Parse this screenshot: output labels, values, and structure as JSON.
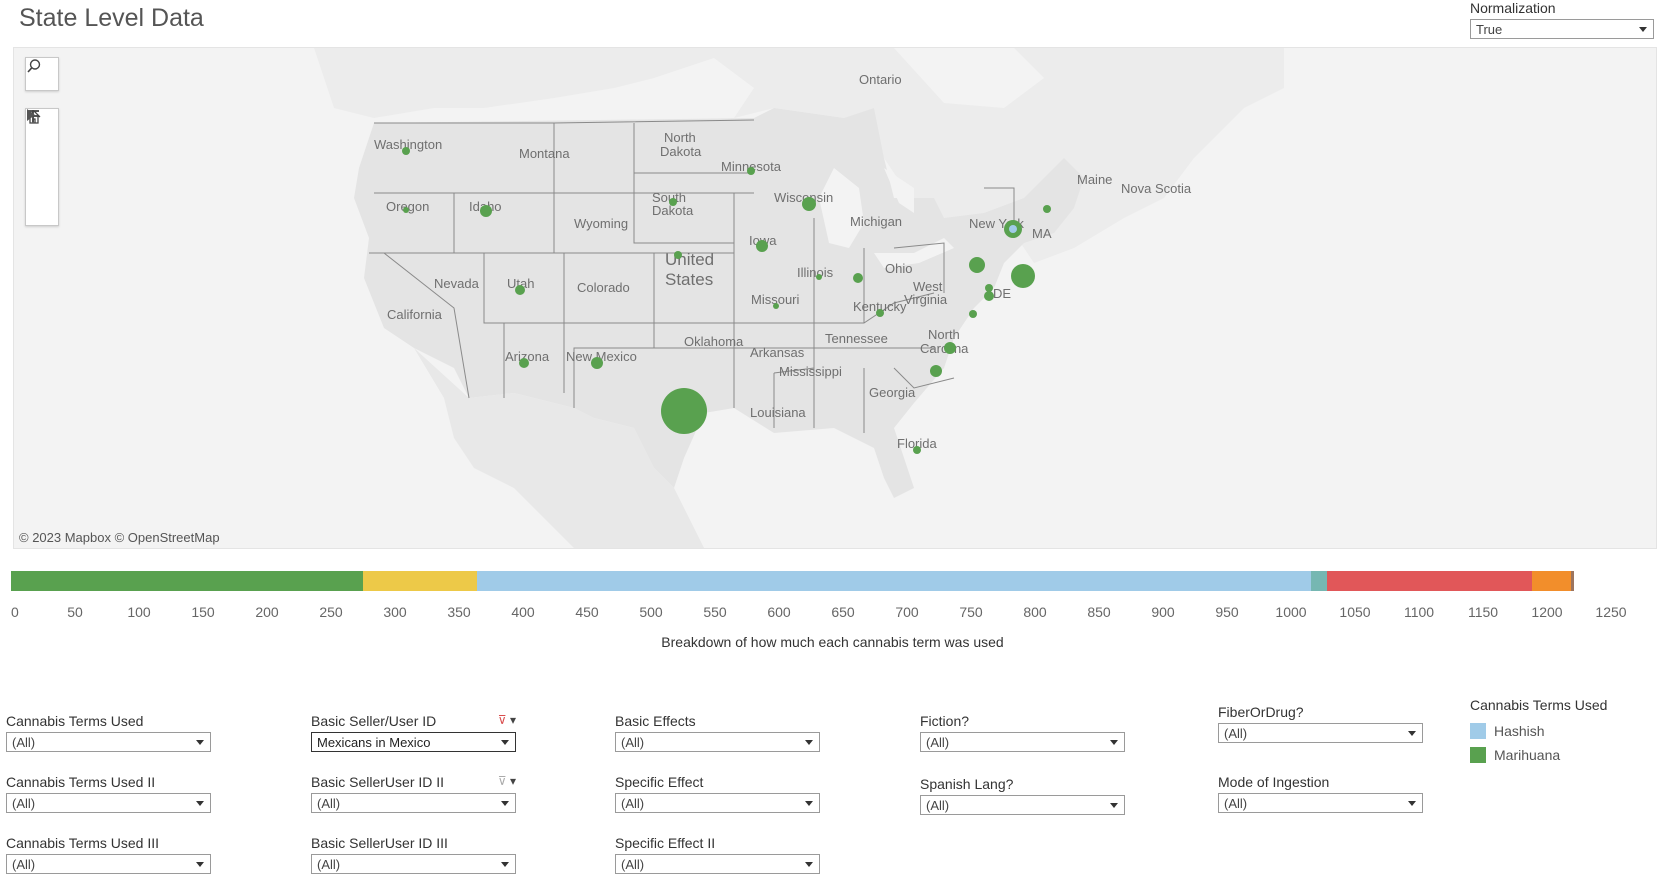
{
  "title": "State Level Data",
  "normalization": {
    "label": "Normalization",
    "value": "True"
  },
  "map": {
    "attribution": "© 2023 Mapbox  © OpenStreetMap",
    "place_labels": [
      {
        "text": "Ontario"
      },
      {
        "text": "Washington"
      },
      {
        "text": "Montana"
      },
      {
        "text": "North"
      },
      {
        "text": "Dakota"
      },
      {
        "text": "Minnesota"
      },
      {
        "text": "Maine"
      },
      {
        "text": "Nova Scotia"
      },
      {
        "text": "Oregon"
      },
      {
        "text": "Idaho"
      },
      {
        "text": "Wyoming"
      },
      {
        "text": "South"
      },
      {
        "text": "Dakota"
      },
      {
        "text": "Wisconsin"
      },
      {
        "text": "Michigan"
      },
      {
        "text": "New York"
      },
      {
        "text": "MA"
      },
      {
        "text": "Iowa"
      },
      {
        "text": "United"
      },
      {
        "text": "States"
      },
      {
        "text": "Nevada"
      },
      {
        "text": "Utah"
      },
      {
        "text": "Colorado"
      },
      {
        "text": "Illinois"
      },
      {
        "text": "Ohio"
      },
      {
        "text": "West"
      },
      {
        "text": "Virginia"
      },
      {
        "text": "DE"
      },
      {
        "text": "California"
      },
      {
        "text": "Missouri"
      },
      {
        "text": "Kentucky"
      },
      {
        "text": "Tennessee"
      },
      {
        "text": "Oklahoma"
      },
      {
        "text": "North"
      },
      {
        "text": "Carolina"
      },
      {
        "text": "Arizona"
      },
      {
        "text": "New Mexico"
      },
      {
        "text": "Arkansas"
      },
      {
        "text": "Mississippi"
      },
      {
        "text": "Georgia"
      },
      {
        "text": "Louisiana"
      },
      {
        "text": "Florida"
      }
    ],
    "marker_colors": {
      "marihuana": "#59a14f",
      "hashish": "#a0cbe8"
    }
  },
  "map_tools": {
    "search": "search-icon",
    "zoom_in": "plus-icon",
    "zoom_out": "minus-icon",
    "home": "home-icon",
    "pan": "play-icon"
  },
  "breakdown": {
    "caption": "Breakdown of how much each cannabis term was used",
    "segments": [
      {
        "from": 0,
        "to": 275,
        "color": "#59a14f"
      },
      {
        "from": 275,
        "to": 364,
        "color": "#edc948"
      },
      {
        "from": 364,
        "to": 1016,
        "color": "#a0cbe8"
      },
      {
        "from": 1016,
        "to": 1028,
        "color": "#76b7b2"
      },
      {
        "from": 1028,
        "to": 1188,
        "color": "#e15759"
      },
      {
        "from": 1188,
        "to": 1219,
        "color": "#f28e2b"
      },
      {
        "from": 1219,
        "to": 1221,
        "color": "#9c755f"
      }
    ],
    "axis_max": 1250,
    "ticks": [
      "0",
      "50",
      "100",
      "150",
      "200",
      "250",
      "300",
      "350",
      "400",
      "450",
      "500",
      "550",
      "600",
      "650",
      "700",
      "750",
      "800",
      "850",
      "900",
      "950",
      "1000",
      "1050",
      "1100",
      "1150",
      "1200",
      "1250"
    ]
  },
  "filters": {
    "c1": [
      {
        "label": "Cannabis Terms Used",
        "value": "(All)"
      },
      {
        "label": "Cannabis Terms Used II",
        "value": "(All)"
      },
      {
        "label": "Cannabis Terms Used III",
        "value": "(All)"
      }
    ],
    "c2": [
      {
        "label": "Basic Seller/User ID",
        "value": "Mexicans in Mexico"
      },
      {
        "label": "Basic SellerUser ID II",
        "value": "(All)"
      },
      {
        "label": "Basic SellerUser ID III",
        "value": "(All)"
      }
    ],
    "c3": [
      {
        "label": "Basic Effects",
        "value": "(All)"
      },
      {
        "label": "Specific Effect",
        "value": "(All)"
      },
      {
        "label": "Specific Effect II",
        "value": "(All)"
      }
    ],
    "c4": [
      {
        "label": "Fiction?",
        "value": "(All)"
      },
      {
        "label": "Spanish Lang?",
        "value": "(All)"
      }
    ],
    "c5": [
      {
        "label": "FiberOrDrug?",
        "value": "(All)"
      },
      {
        "label": "Mode of Ingestion",
        "value": "(All)"
      }
    ]
  },
  "legend": {
    "title": "Cannabis Terms Used",
    "items": [
      {
        "label": "Hashish",
        "color": "#a0cbe8"
      },
      {
        "label": "Marihuana",
        "color": "#59a14f"
      }
    ]
  }
}
